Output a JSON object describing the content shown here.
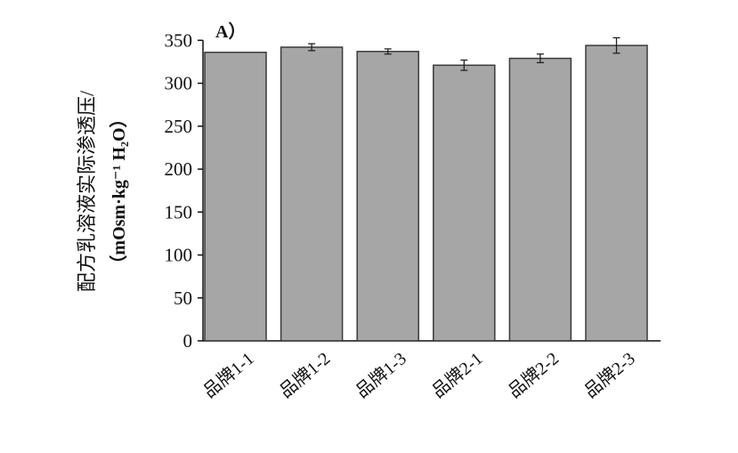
{
  "chart_data": {
    "type": "bar",
    "panel_label": "A）",
    "ylabel_line1": "配方乳溶液实际渗透压/",
    "ylabel_line2": "（mOsm·kg⁻¹ H₂O）",
    "xlabel": "",
    "categories": [
      "品牌1-1",
      "品牌1-2",
      "品牌1-3",
      "品牌2-1",
      "品牌2-2",
      "品牌2-3"
    ],
    "values": [
      336,
      342,
      337,
      321,
      329,
      344
    ],
    "errors": [
      0,
      4,
      3,
      6,
      5,
      9
    ],
    "ylim": [
      0,
      350
    ],
    "yticks": [
      0,
      50,
      100,
      150,
      200,
      250,
      300,
      350
    ],
    "grid": false,
    "bar_color": "#a6a6a6",
    "bar_edge_color": "#3a3a3a"
  }
}
